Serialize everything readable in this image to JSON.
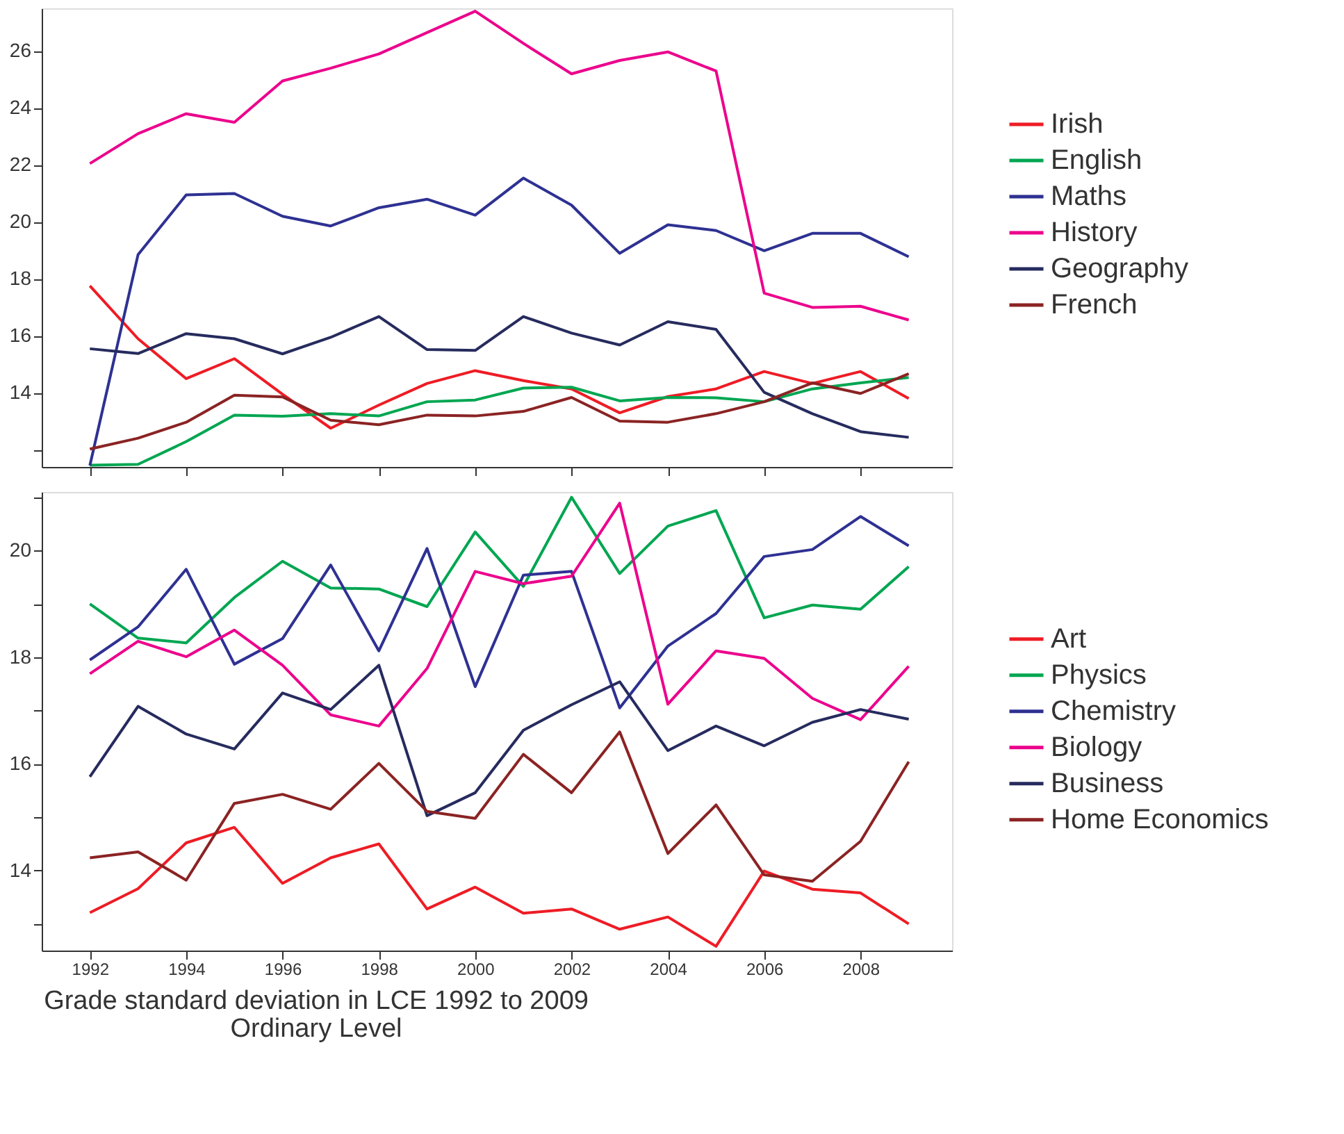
{
  "chart_data": [
    {
      "type": "line",
      "x": [
        1992,
        1993,
        1994,
        1995,
        1996,
        1997,
        1998,
        1999,
        2000,
        2001,
        2002,
        2003,
        2004,
        2005,
        2006,
        2007,
        2008,
        2009
      ],
      "xlim": [
        1991,
        2009.9
      ],
      "xticks": [
        {
          "value": 1992,
          "label": null
        },
        {
          "value": 1994,
          "label": null
        },
        {
          "value": 1996,
          "label": null
        },
        {
          "value": 1998,
          "label": null
        },
        {
          "value": 2000,
          "label": null
        },
        {
          "value": 2002,
          "label": null
        },
        {
          "value": 2004,
          "label": null
        },
        {
          "value": 2006,
          "label": null
        },
        {
          "value": 2008,
          "label": null
        }
      ],
      "ylim": [
        11.4,
        27.5
      ],
      "yticks": [
        {
          "value": 12,
          "label": null
        },
        14,
        16,
        18,
        20,
        22,
        24,
        26
      ],
      "tick_labels": "y",
      "grid": false,
      "legend": "top right",
      "series": [
        {
          "name": "Irish",
          "color": "#ee1c25",
          "values": [
            17.76,
            15.9,
            14.5,
            15.2,
            13.95,
            12.76,
            13.57,
            14.33,
            14.78,
            14.43,
            14.14,
            13.3,
            13.87,
            14.14,
            14.75,
            14.33,
            14.75,
            13.8
          ]
        },
        {
          "name": "English",
          "color": "#00a651",
          "values": [
            11.46,
            11.49,
            12.29,
            13.22,
            13.18,
            13.27,
            13.19,
            13.69,
            13.75,
            14.17,
            14.2,
            13.72,
            13.84,
            13.83,
            13.69,
            14.14,
            14.35,
            14.54
          ]
        },
        {
          "name": "Maths",
          "color": "#2e3192",
          "values": [
            11.45,
            18.85,
            20.95,
            21.0,
            20.2,
            19.86,
            20.5,
            20.8,
            20.24,
            21.54,
            20.59,
            18.9,
            19.9,
            19.7,
            18.99,
            19.6,
            19.6,
            18.78
          ]
        },
        {
          "name": "History",
          "color": "#ec008c",
          "values": [
            22.05,
            23.1,
            23.8,
            23.5,
            24.95,
            25.4,
            25.9,
            26.65,
            27.4,
            26.27,
            25.2,
            25.67,
            25.97,
            25.3,
            17.5,
            17.0,
            17.04,
            16.56
          ]
        },
        {
          "name": "Geography",
          "color": "#262b5e",
          "values": [
            15.55,
            15.38,
            16.08,
            15.9,
            15.37,
            15.95,
            16.68,
            15.52,
            15.49,
            16.68,
            16.1,
            15.68,
            16.5,
            16.23,
            14.02,
            13.27,
            12.64,
            12.44
          ]
        },
        {
          "name": "French",
          "color": "#8b2323",
          "values": [
            12.03,
            12.41,
            12.97,
            13.92,
            13.86,
            13.04,
            12.88,
            13.22,
            13.19,
            13.35,
            13.84,
            13.01,
            12.97,
            13.27,
            13.69,
            14.35,
            13.98,
            14.67
          ]
        }
      ]
    },
    {
      "type": "line",
      "x": [
        1992,
        1993,
        1994,
        1995,
        1996,
        1997,
        1998,
        1999,
        2000,
        2001,
        2002,
        2003,
        2004,
        2005,
        2006,
        2007,
        2008,
        2009
      ],
      "title": "Grade standard deviation in LCE 1992 to 2009",
      "subtitle": "Ordinary Level",
      "xlim": [
        1991,
        2009.9
      ],
      "xticks": [
        1992,
        1994,
        1996,
        1998,
        2000,
        2002,
        2004,
        2006,
        2008
      ],
      "ylim": [
        12.5,
        21.1
      ],
      "yticks": [
        {
          "value": 13,
          "label": null
        },
        14,
        {
          "value": 15,
          "label": null
        },
        16,
        {
          "value": 17,
          "label": null
        },
        18,
        {
          "value": 19,
          "label": null
        },
        20,
        {
          "value": 21,
          "label": null
        }
      ],
      "grid": false,
      "legend": "right",
      "series": [
        {
          "name": "Art",
          "color": "#ee1c25",
          "values": [
            13.21,
            13.66,
            14.52,
            14.81,
            13.76,
            14.24,
            14.5,
            13.28,
            13.69,
            13.2,
            13.28,
            12.9,
            13.13,
            12.58,
            13.99,
            13.65,
            13.58,
            13.0
          ]
        },
        {
          "name": "Physics",
          "color": "#00a651",
          "values": [
            19.0,
            18.36,
            18.27,
            19.12,
            19.8,
            19.3,
            19.28,
            18.95,
            20.35,
            19.33,
            21.0,
            19.57,
            20.46,
            20.75,
            18.74,
            18.98,
            18.9,
            19.7
          ]
        },
        {
          "name": "Chemistry",
          "color": "#2e3192",
          "values": [
            17.95,
            18.57,
            19.65,
            17.87,
            18.35,
            19.73,
            18.12,
            20.04,
            17.45,
            19.54,
            19.61,
            17.05,
            18.21,
            18.82,
            19.89,
            20.02,
            20.64,
            20.09
          ]
        },
        {
          "name": "Biology",
          "color": "#ec008c",
          "values": [
            17.69,
            18.3,
            18.01,
            18.51,
            17.85,
            16.92,
            16.71,
            17.79,
            19.61,
            19.38,
            19.52,
            20.89,
            17.12,
            18.12,
            17.98,
            17.23,
            16.83,
            17.83
          ]
        },
        {
          "name": "Business",
          "color": "#262b5e",
          "values": [
            15.76,
            17.08,
            16.56,
            16.28,
            17.33,
            17.02,
            17.85,
            15.03,
            15.46,
            16.63,
            17.11,
            17.54,
            16.25,
            16.71,
            16.34,
            16.78,
            17.02,
            16.84
          ]
        },
        {
          "name": "Home Economics",
          "color": "#8b2323",
          "values": [
            14.24,
            14.35,
            13.82,
            15.26,
            15.43,
            15.15,
            16.01,
            15.11,
            14.98,
            16.18,
            15.46,
            16.6,
            14.32,
            15.23,
            13.92,
            13.8,
            14.55,
            16.04
          ]
        }
      ]
    }
  ]
}
